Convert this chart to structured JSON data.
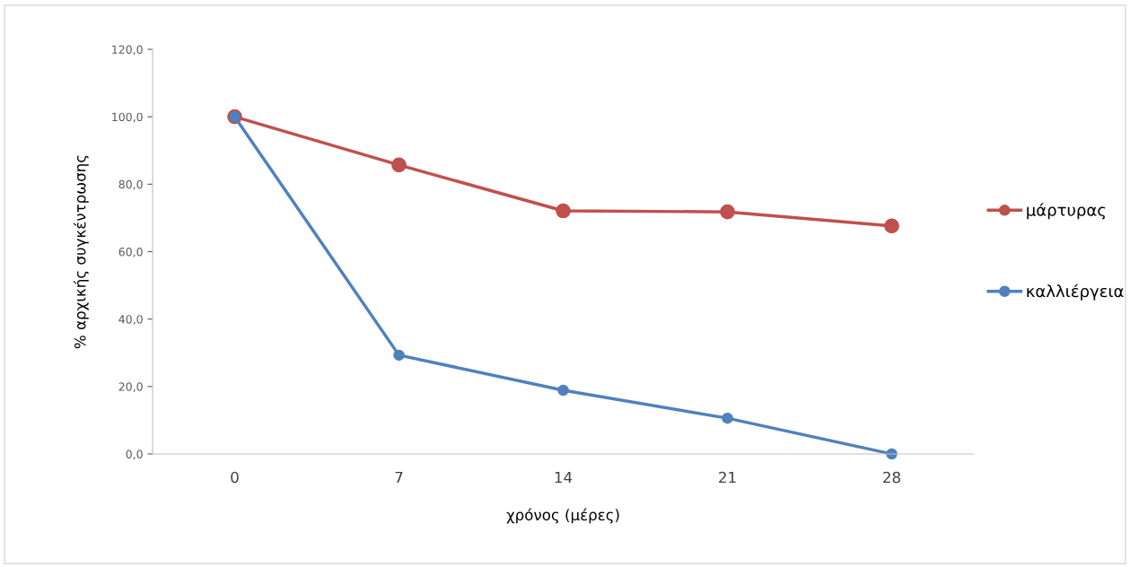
{
  "chart_data": {
    "type": "line",
    "xlabel": "χρόνος (μέρες)",
    "ylabel": "% αρχικής συγκέντρωσης",
    "categories": [
      "0",
      "7",
      "14",
      "21",
      "28"
    ],
    "series": [
      {
        "name": "μάρτυρας",
        "color": "#c0504d",
        "values": [
          100.0,
          85.7,
          72.1,
          71.8,
          67.6
        ]
      },
      {
        "name": "καλλιέργεια",
        "color": "#4f81bd",
        "values": [
          100.0,
          29.3,
          18.9,
          10.6,
          0.0
        ]
      }
    ],
    "ylim": [
      0,
      120
    ],
    "yticks": [
      {
        "value": 0,
        "label": "0,0"
      },
      {
        "value": 20,
        "label": "20,0"
      },
      {
        "value": 40,
        "label": "40,0"
      },
      {
        "value": 60,
        "label": "60,0"
      },
      {
        "value": 80,
        "label": "80,0"
      },
      {
        "value": 100,
        "label": "100,0"
      },
      {
        "value": 120,
        "label": "120,0"
      }
    ],
    "legend": "right",
    "marker": "circle",
    "line_style": "solid"
  }
}
